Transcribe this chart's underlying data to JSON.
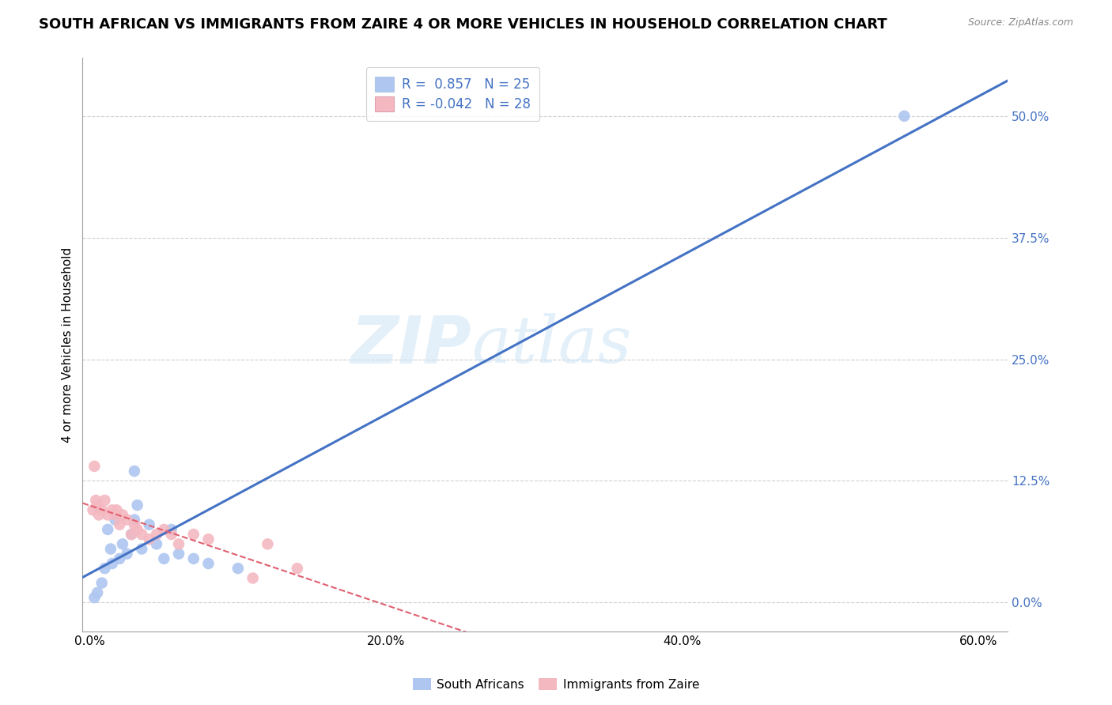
{
  "title": "SOUTH AFRICAN VS IMMIGRANTS FROM ZAIRE 4 OR MORE VEHICLES IN HOUSEHOLD CORRELATION CHART",
  "source": "Source: ZipAtlas.com",
  "ylabel": "4 or more Vehicles in Household",
  "legend1_label": "R =  0.857   N = 25",
  "legend2_label": "R = -0.042   N = 28",
  "legend1_color": "#aec6f0",
  "legend2_color": "#f4b8c1",
  "line1_color": "#4472c4",
  "line2_color": "#e06070",
  "watermark_zip": "ZIP",
  "watermark_atlas": "atlas",
  "sa_x": [
    0.3,
    0.5,
    0.8,
    1.0,
    1.2,
    1.4,
    1.5,
    1.7,
    2.0,
    2.2,
    2.5,
    2.8,
    3.0,
    3.2,
    3.5,
    4.0,
    4.5,
    5.0,
    5.5,
    6.0,
    7.0,
    8.0,
    10.0,
    3.0,
    55.0
  ],
  "sa_y": [
    0.5,
    1.0,
    2.0,
    3.5,
    7.5,
    5.5,
    4.0,
    8.5,
    4.5,
    6.0,
    5.0,
    7.0,
    8.5,
    10.0,
    5.5,
    8.0,
    6.0,
    4.5,
    7.5,
    5.0,
    4.5,
    4.0,
    3.5,
    13.5,
    50.0
  ],
  "iz_x": [
    0.2,
    0.3,
    0.4,
    0.5,
    0.6,
    0.8,
    1.0,
    1.2,
    1.5,
    1.7,
    1.8,
    2.0,
    2.2,
    2.5,
    2.8,
    3.0,
    3.2,
    3.5,
    4.0,
    4.5,
    5.0,
    5.5,
    6.0,
    7.0,
    8.0,
    11.0,
    12.0,
    14.0
  ],
  "iz_y": [
    9.5,
    14.0,
    10.5,
    10.0,
    9.0,
    9.5,
    10.5,
    9.0,
    9.5,
    9.0,
    9.5,
    8.0,
    9.0,
    8.5,
    7.0,
    8.0,
    7.5,
    7.0,
    6.5,
    7.0,
    7.5,
    7.0,
    6.0,
    7.0,
    6.5,
    2.5,
    6.0,
    3.5
  ],
  "xlim_min": -0.5,
  "xlim_max": 62,
  "ylim_min": -3,
  "ylim_max": 56,
  "x_ticks": [
    0,
    20,
    40,
    60
  ],
  "y_right_ticks": [
    0,
    12.5,
    25,
    37.5,
    50
  ],
  "background_color": "#ffffff",
  "grid_color": "#d0d0d0",
  "title_fontsize": 13,
  "axis_label_fontsize": 11,
  "tick_fontsize": 11
}
